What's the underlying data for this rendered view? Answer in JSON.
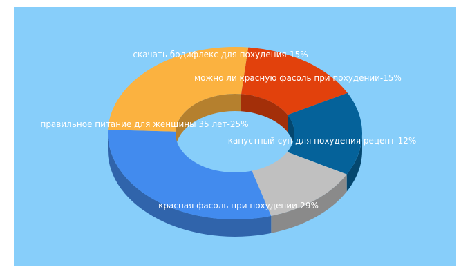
{
  "chart_data": {
    "type": "pie",
    "variant": "3d-donut",
    "background": "#87cefa",
    "slices": [
      {
        "label": "скачать бодифлекс для похудения-15%",
        "value": 15,
        "color": "#e2410c"
      },
      {
        "label": "можно ли красную фасоль при похудении-15%",
        "value": 15,
        "color": "#05629a"
      },
      {
        "label": "капустный суп для похудения рецепт-12%",
        "value": 12,
        "color": "#c0c0c0"
      },
      {
        "label": "красная фасоль при похудении-29%",
        "value": 29,
        "color": "#428bee"
      },
      {
        "label": "правильное питание для женщины 35 лет-25%",
        "value": 25,
        "color": "#fbb240"
      }
    ]
  }
}
